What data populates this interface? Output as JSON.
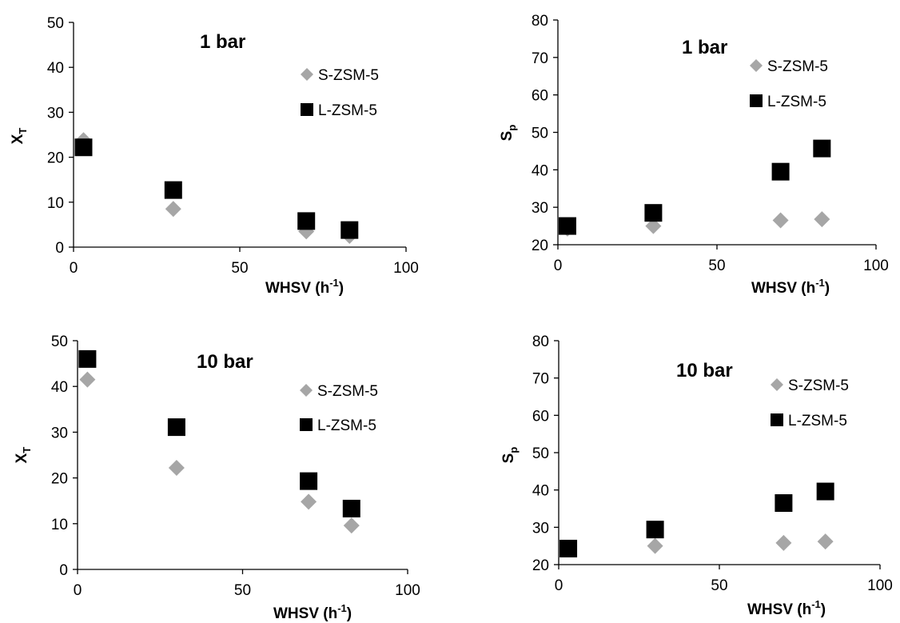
{
  "chart_data": [
    {
      "type": "scatter",
      "title": "1 bar",
      "xlabel": "WHSV (h",
      "xlabel_sup": "-1",
      "xlabel_end": ")",
      "ylabel": "X",
      "ylabel_sub": "T",
      "xlim": [
        0,
        100
      ],
      "ylim": [
        0,
        50
      ],
      "xticks": [
        "0",
        "50",
        "100"
      ],
      "yticks": [
        "0",
        "10",
        "20",
        "30",
        "40",
        "50"
      ],
      "grid": false,
      "legend_position": "top-right",
      "series": [
        {
          "name": "S-ZSM-5",
          "marker": "diamond",
          "color": "#a6a6a6",
          "x": [
            3,
            30,
            70,
            83
          ],
          "y": [
            23.8,
            8.5,
            3.5,
            2.5
          ]
        },
        {
          "name": "L-ZSM-5",
          "marker": "square",
          "color": "#000000",
          "x": [
            3,
            30,
            70,
            83
          ],
          "y": [
            22.2,
            12.7,
            5.8,
            3.8
          ]
        }
      ]
    },
    {
      "type": "scatter",
      "title": "1 bar",
      "xlabel": "WHSV (h",
      "xlabel_sup": "-1",
      "xlabel_end": ")",
      "ylabel": "S",
      "ylabel_sub": "p",
      "xlim": [
        0,
        100
      ],
      "ylim": [
        20,
        80
      ],
      "xticks": [
        "0",
        "50",
        "100"
      ],
      "yticks": [
        "20",
        "30",
        "40",
        "50",
        "60",
        "70",
        "80"
      ],
      "grid": false,
      "legend_position": "top-right",
      "series": [
        {
          "name": "S-ZSM-5",
          "marker": "diamond",
          "color": "#a6a6a6",
          "x": [
            3,
            30,
            70,
            83
          ],
          "y": [
            24.3,
            25.0,
            26.5,
            26.8
          ]
        },
        {
          "name": "L-ZSM-5",
          "marker": "square",
          "color": "#000000",
          "x": [
            3,
            30,
            70,
            83
          ],
          "y": [
            25.0,
            28.5,
            39.5,
            45.7
          ]
        }
      ]
    },
    {
      "type": "scatter",
      "title": "10 bar",
      "xlabel": "WHSV (h",
      "xlabel_sup": "-1",
      "xlabel_end": ")",
      "ylabel": "X",
      "ylabel_sub": "T",
      "xlim": [
        0,
        100
      ],
      "ylim": [
        0,
        50
      ],
      "xticks": [
        "0",
        "50",
        "100"
      ],
      "yticks": [
        "0",
        "10",
        "20",
        "30",
        "40",
        "50"
      ],
      "grid": false,
      "legend_position": "top-right",
      "series": [
        {
          "name": "S-ZSM-5",
          "marker": "diamond",
          "color": "#a6a6a6",
          "x": [
            3,
            30,
            70,
            83
          ],
          "y": [
            41.5,
            22.2,
            14.8,
            9.6
          ]
        },
        {
          "name": "L-ZSM-5",
          "marker": "square",
          "color": "#000000",
          "x": [
            3,
            30,
            70,
            83
          ],
          "y": [
            46.0,
            31.1,
            19.3,
            13.3
          ]
        }
      ]
    },
    {
      "type": "scatter",
      "title": "10 bar",
      "xlabel": "WHSV (h",
      "xlabel_sup": "-1",
      "xlabel_end": ")",
      "ylabel": "S",
      "ylabel_sub": "p",
      "xlim": [
        0,
        100
      ],
      "ylim": [
        20,
        80
      ],
      "xticks": [
        "0",
        "50",
        "100"
      ],
      "yticks": [
        "20",
        "30",
        "40",
        "50",
        "60",
        "70",
        "80"
      ],
      "grid": false,
      "legend_position": "top-right",
      "series": [
        {
          "name": "S-ZSM-5",
          "marker": "diamond",
          "color": "#a6a6a6",
          "x": [
            3,
            30,
            70,
            83
          ],
          "y": [
            24.3,
            25.0,
            25.8,
            26.2
          ]
        },
        {
          "name": "L-ZSM-5",
          "marker": "square",
          "color": "#000000",
          "x": [
            3,
            30,
            70,
            83
          ],
          "y": [
            24.3,
            29.4,
            36.5,
            39.6
          ]
        }
      ]
    }
  ]
}
